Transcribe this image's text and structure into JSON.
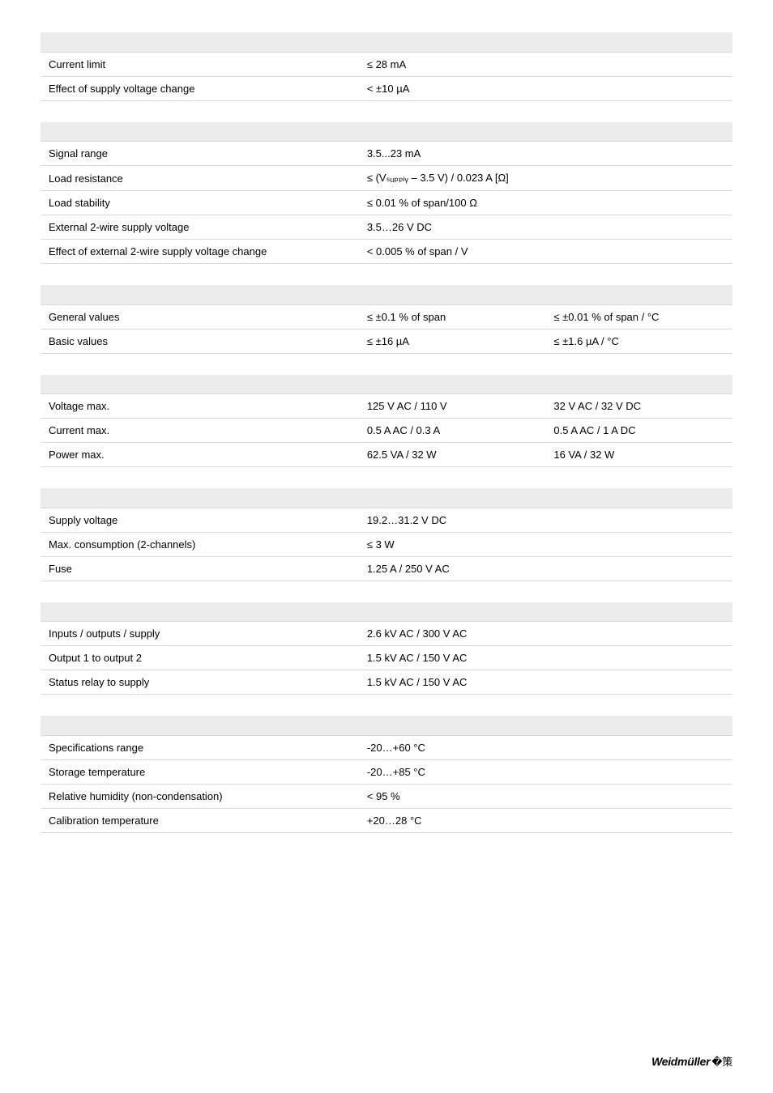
{
  "tables": [
    {
      "header_cols": 2,
      "rows": [
        {
          "label": "Current limit",
          "vals": [
            "≤ 28 mA"
          ]
        },
        {
          "label": "Effect of supply voltage change",
          "vals": [
            "< ±10 µA"
          ]
        }
      ]
    },
    {
      "header_cols": 2,
      "rows": [
        {
          "label": "Signal range",
          "vals": [
            "3.5...23 mA"
          ]
        },
        {
          "label": "Load resistance",
          "vals": [
            "≤ (Vₛᵤₚₚₗᵧ – 3.5 V) / 0.023 A [Ω]"
          ]
        },
        {
          "label": "Load stability",
          "vals": [
            "≤ 0.01 % of span/100 Ω"
          ]
        },
        {
          "label": "External 2-wire supply voltage",
          "vals": [
            "3.5…26 V DC"
          ]
        },
        {
          "label": "Effect of external 2-wire supply voltage change",
          "vals": [
            "< 0.005 % of span / V"
          ]
        }
      ]
    },
    {
      "header_cols": 3,
      "rows": [
        {
          "label": "General values",
          "vals": [
            "≤ ±0.1 % of span",
            "≤ ±0.01 % of span / °C"
          ]
        },
        {
          "label": "Basic values",
          "vals": [
            "≤ ±16 µA",
            "≤ ±1.6 µA / °C"
          ]
        }
      ]
    },
    {
      "header_cols": 3,
      "rows": [
        {
          "label": "Voltage max.",
          "vals": [
            "125 V AC / 110 V",
            "32 V AC / 32 V DC"
          ]
        },
        {
          "label": "Current max.",
          "vals": [
            "0.5 A AC / 0.3 A",
            "0.5 A AC / 1 A DC"
          ]
        },
        {
          "label": "Power max.",
          "vals": [
            "62.5 VA / 32 W",
            "16 VA / 32 W"
          ]
        }
      ]
    },
    {
      "header_cols": 2,
      "rows": [
        {
          "label": "Supply voltage",
          "vals": [
            "19.2…31.2 V DC"
          ]
        },
        {
          "label": "Max. consumption (2-channels)",
          "vals": [
            "≤ 3 W"
          ]
        },
        {
          "label": "Fuse",
          "vals": [
            "1.25 A / 250 V AC"
          ]
        }
      ]
    },
    {
      "header_cols": 2,
      "rows": [
        {
          "label": "Inputs / outputs / supply",
          "vals": [
            "2.6 kV AC / 300 V AC"
          ]
        },
        {
          "label": "Output 1 to output 2",
          "vals": [
            "1.5 kV AC / 150 V AC"
          ]
        },
        {
          "label": "Status relay to supply",
          "vals": [
            "1.5 kV AC / 150 V AC"
          ]
        }
      ]
    },
    {
      "header_cols": 2,
      "rows": [
        {
          "label": "Specifications range",
          "vals": [
            "-20…+60 °C"
          ]
        },
        {
          "label": "Storage temperature",
          "vals": [
            "-20…+85 °C"
          ]
        },
        {
          "label": "Relative humidity (non-condensation)",
          "vals": [
            "< 95 %"
          ]
        },
        {
          "label": "Calibration temperature",
          "vals": [
            "+20…28 °C"
          ]
        }
      ]
    }
  ],
  "footer": {
    "brand": "Weidmüller",
    "symbol": "�策"
  },
  "style": {
    "header_bg": "#ececec",
    "border_color": "#d9d9d9",
    "font_size": 13
  }
}
